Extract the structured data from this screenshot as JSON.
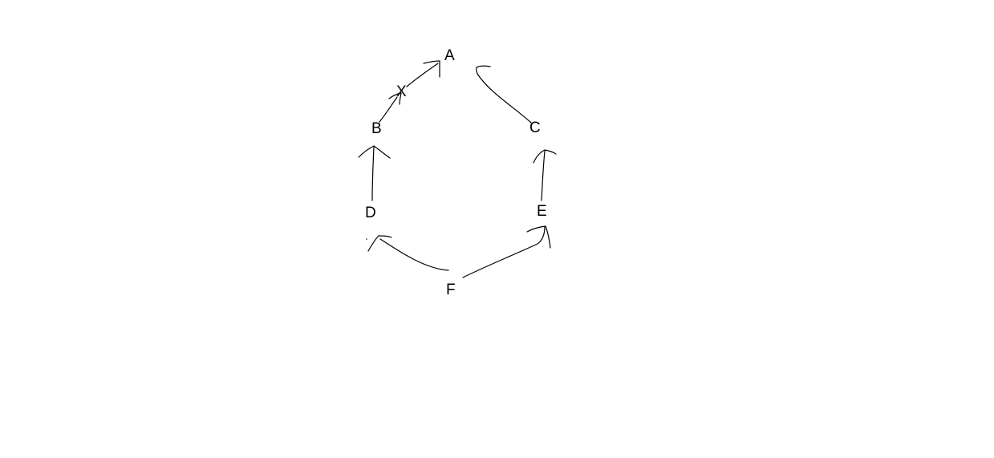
{
  "diagram": {
    "nodes": {
      "a": "A",
      "x": "X",
      "b": "B",
      "c": "C",
      "d": "D",
      "e": "E",
      "f": "F"
    },
    "edges": [
      {
        "from": "X",
        "to": "A"
      },
      {
        "from": "B",
        "to": "X"
      },
      {
        "from": "C",
        "to": "A"
      },
      {
        "from": "D",
        "to": "B"
      },
      {
        "from": "E",
        "to": "C"
      },
      {
        "from": "F",
        "to": "D"
      },
      {
        "from": "F",
        "to": "E"
      }
    ],
    "colors": {
      "background": "#ffffff",
      "ink": "#000000"
    }
  }
}
